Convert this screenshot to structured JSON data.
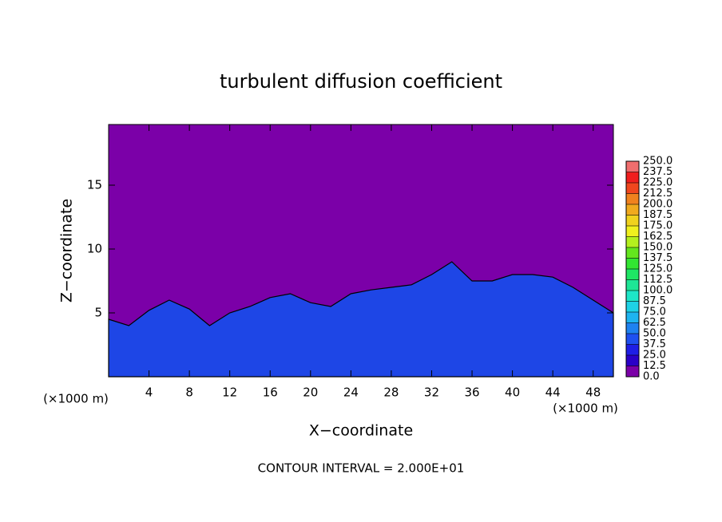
{
  "chart_data": {
    "type": "contour",
    "title": "turbulent diffusion coefficient",
    "x_label": "X−coordinate",
    "y_label": "Z−coordinate",
    "x_unit_left": "(×1000 m)",
    "x_unit_right": "(×1000 m)",
    "note": "CONTOUR INTERVAL = 2.000E+01",
    "xlim": [
      0,
      50
    ],
    "ylim": [
      0,
      19.75
    ],
    "xticks": [
      4,
      8,
      12,
      16,
      20,
      24,
      28,
      32,
      36,
      40,
      44,
      48
    ],
    "yticks": [
      5,
      10,
      15
    ],
    "background_color": "#7b00a8",
    "layer_top": {
      "color": "#1e46e6",
      "x": [
        0,
        2,
        4,
        6,
        8,
        10,
        12,
        14,
        16,
        18,
        20,
        22,
        24,
        26,
        28,
        30,
        32,
        34,
        36,
        38,
        40,
        42,
        44,
        46,
        48,
        50
      ],
      "values": [
        4.5,
        4.0,
        5.2,
        6.0,
        5.3,
        4.0,
        5.0,
        5.5,
        6.2,
        6.5,
        5.8,
        5.5,
        6.5,
        6.8,
        7.0,
        7.2,
        8.0,
        9.0,
        7.5,
        7.5,
        8.0,
        8.0,
        7.8,
        7.0,
        6.0,
        5.0
      ]
    },
    "colorbar": {
      "levels": [
        {
          "value": 0,
          "label": "0.0"
        },
        12.5,
        {
          "value": 25,
          "label": "25.0"
        },
        37.5,
        {
          "value": 50,
          "label": "50.0"
        },
        62.5,
        {
          "value": 75,
          "label": "75.0"
        },
        87.5,
        {
          "value": 100,
          "label": "100.0"
        },
        112.5,
        {
          "value": 125,
          "label": "125.0"
        },
        137.5,
        {
          "value": 150,
          "label": "150.0"
        },
        162.5,
        {
          "value": 175,
          "label": "175.0"
        },
        187.5,
        {
          "value": 200,
          "label": "200.0"
        },
        212.5,
        {
          "value": 225,
          "label": "225.0"
        },
        237.5,
        {
          "value": 250,
          "label": "250.0"
        }
      ],
      "colors": [
        "#7b00a8",
        "#2a00c8",
        "#1e1ee6",
        "#1e50f0",
        "#1e82f0",
        "#1eb4f0",
        "#1ed2e6",
        "#1ee6c8",
        "#1ee696",
        "#1ee664",
        "#32e632",
        "#64e61e",
        "#b4f01e",
        "#f0f01e",
        "#f0d21e",
        "#f0aa1e",
        "#f0821e",
        "#f0461e",
        "#f01e1e",
        "#f06e6e"
      ]
    }
  }
}
